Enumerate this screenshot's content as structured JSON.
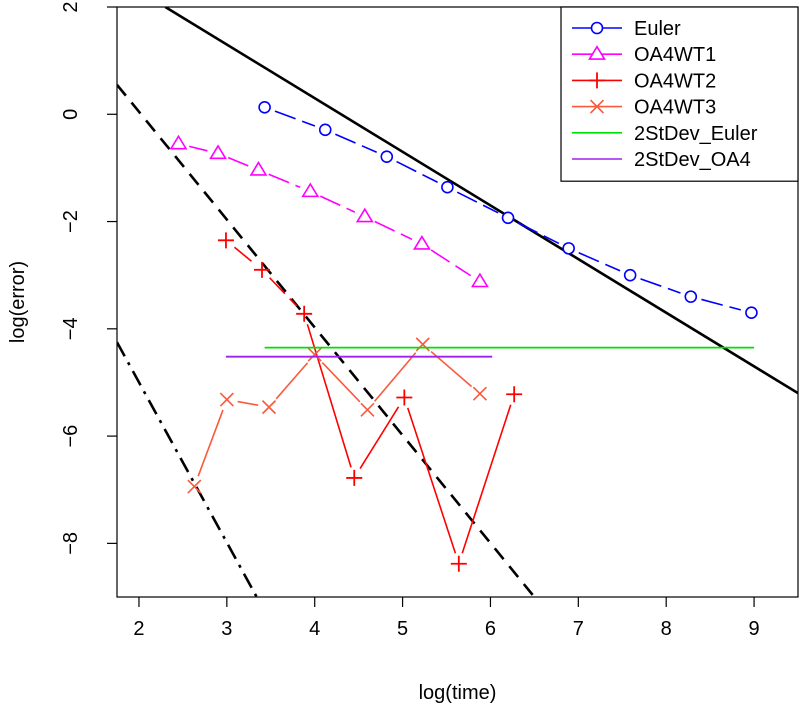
{
  "chart_data": {
    "type": "line",
    "title": "",
    "xlabel": "log(time)",
    "ylabel": "log(error)",
    "xlim": [
      1.75,
      9.5
    ],
    "ylim": [
      -9,
      2
    ],
    "x_ticks": [
      "2",
      "3",
      "4",
      "5",
      "6",
      "7",
      "8",
      "9"
    ],
    "y_ticks": [
      "2",
      "0",
      "−2",
      "−4",
      "−6",
      "−8"
    ],
    "grid": false,
    "legend_position": "top-right",
    "series": [
      {
        "name": "Euler",
        "color": "#0000ff",
        "marker": "circle",
        "line_style": "longdash",
        "x": [
          3.43,
          4.12,
          4.82,
          5.51,
          6.2,
          6.89,
          7.59,
          8.28,
          8.97
        ],
        "y": [
          0.13,
          -0.29,
          -0.79,
          -1.36,
          -1.93,
          -2.5,
          -3.0,
          -3.4,
          -3.7
        ]
      },
      {
        "name": "OA4WT1",
        "color": "#ff00ff",
        "marker": "triangle",
        "line_style": "longdash",
        "x": [
          2.45,
          2.9,
          3.36,
          3.95,
          4.57,
          5.22,
          5.88
        ],
        "y": [
          -0.55,
          -0.73,
          -1.04,
          -1.44,
          -1.91,
          -2.42,
          -3.12
        ]
      },
      {
        "name": "OA4WT2",
        "color": "#ff0000",
        "marker": "plus",
        "line_style": "mixed",
        "x": [
          2.99,
          3.4,
          3.88,
          4.45,
          5.02,
          5.64,
          6.27
        ],
        "y": [
          -2.35,
          -2.9,
          -3.72,
          -6.78,
          -5.28,
          -8.38,
          -5.22
        ]
      },
      {
        "name": "OA4WT3",
        "color": "#fa5a3c",
        "marker": "cross",
        "line_style": "solid",
        "x": [
          2.63,
          3.0,
          3.48,
          4.0,
          4.6,
          5.23,
          5.88
        ],
        "y": [
          -6.94,
          -5.32,
          -5.46,
          -4.48,
          -5.51,
          -4.29,
          -5.21
        ]
      },
      {
        "name": "2StDev_Euler",
        "color": "#00e000",
        "marker": "none",
        "line_style": "solid",
        "x": [
          3.43,
          9.0
        ],
        "y": [
          -4.35,
          -4.35
        ]
      },
      {
        "name": "2StDev_OA4",
        "color": "#a020f0",
        "marker": "none",
        "line_style": "solid",
        "x": [
          2.99,
          6.02
        ],
        "y": [
          -4.52,
          -4.52
        ]
      }
    ],
    "reference_lines": [
      {
        "style": "solid",
        "color": "#000000",
        "x": [
          2.3,
          9.5
        ],
        "y": [
          2.0,
          -5.2
        ]
      },
      {
        "style": "dashed",
        "color": "#000000",
        "x": [
          1.75,
          6.5
        ],
        "y": [
          0.55,
          -9.0
        ]
      },
      {
        "style": "dashdot",
        "color": "#000000",
        "x": [
          1.75,
          3.34
        ],
        "y": [
          -4.25,
          -9.0
        ]
      }
    ]
  }
}
